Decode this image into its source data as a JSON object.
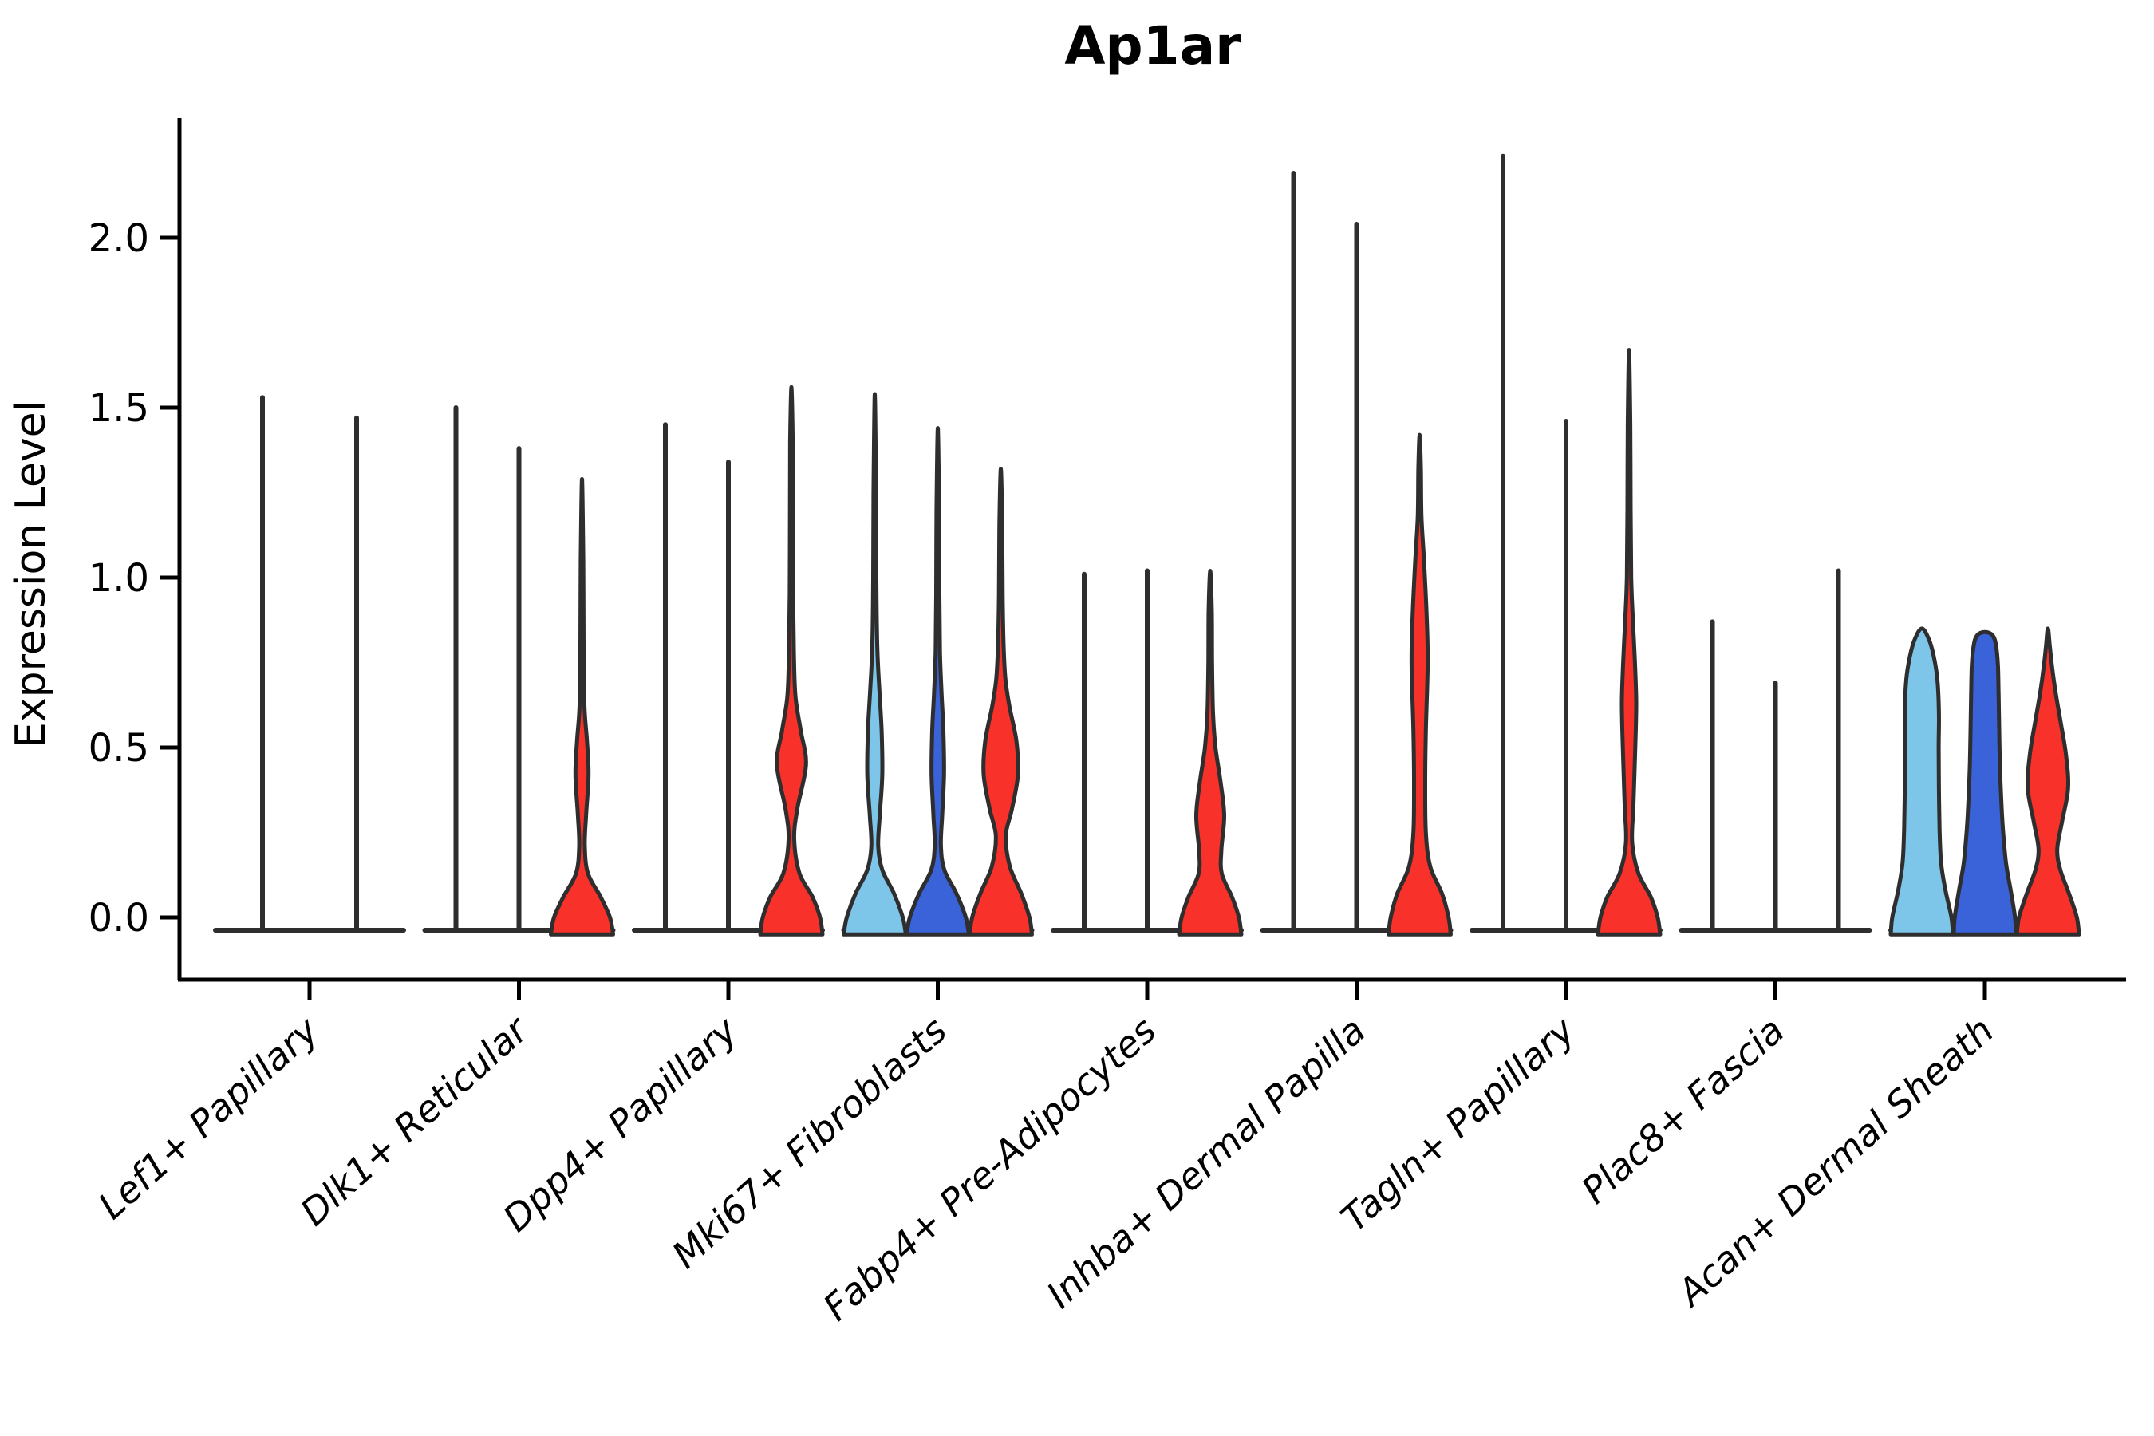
{
  "title": "Ap1ar",
  "y_axis": {
    "label": "Expression Level",
    "tick_labels": [
      "0.0",
      "0.5",
      "1.0",
      "1.5",
      "2.0"
    ],
    "tick_values": [
      0,
      0.5,
      1.0,
      1.5,
      2.0
    ]
  },
  "x_axis": {
    "categories": [
      "Lef1+ Papillary",
      "Dlk1+ Reticular",
      "Dpp4+ Papillary",
      "Mki67+ Fibroblasts",
      "Fabp4+ Pre-Adipocytes",
      "Inhba+ Dermal Papilla",
      "Tagln+ Papillary",
      "Plac8+ Fascia",
      "Acan+ Dermal Sheath"
    ]
  },
  "chart_data": {
    "type": "violin",
    "title": "Ap1ar",
    "xlabel": "",
    "ylabel": "Expression Level",
    "ylim": [
      -0.06,
      2.35
    ],
    "yticks": [
      0,
      0.5,
      1.0,
      1.5,
      2.0
    ],
    "ytick_labels": [
      "0.0",
      "0.5",
      "1.0",
      "1.5",
      "2.0"
    ],
    "grid": false,
    "legend_position": "none",
    "categories": [
      "Lef1+ Papillary",
      "Dlk1+ Reticular",
      "Dpp4+ Papillary",
      "Mki67+ Fibroblasts",
      "Fabp4+ Pre-Adipocytes",
      "Inhba+ Dermal Papilla",
      "Tagln+ Papillary",
      "Plac8+ Fascia",
      "Acan+ Dermal Sheath"
    ],
    "palette": {
      "lightblue": "#7EC6E9",
      "blue": "#3A62D9",
      "red": "#F8322B",
      "outline": "#2E2E2E",
      "axis": "#000000"
    },
    "groups": [
      {
        "category": "Lef1+ Papillary",
        "violins": [
          {
            "kind": "spike",
            "max": 1.53
          },
          {
            "kind": "spike",
            "max": 1.47
          }
        ]
      },
      {
        "category": "Dlk1+ Reticular",
        "violins": [
          {
            "kind": "spike",
            "max": 1.5
          },
          {
            "kind": "spike",
            "max": 1.38
          },
          {
            "kind": "violin",
            "color": "red",
            "max": 1.29,
            "profile": [
              [
                -0.05,
                1.0
              ],
              [
                0,
                0.9
              ],
              [
                0.06,
                0.6
              ],
              [
                0.13,
                0.19
              ],
              [
                0.21,
                0.09
              ],
              [
                0.3,
                0.13
              ],
              [
                0.42,
                0.21
              ],
              [
                0.52,
                0.16
              ],
              [
                0.62,
                0.08
              ],
              [
                0.8,
                0.05
              ],
              [
                1.05,
                0.04
              ],
              [
                1.29,
                0.0
              ]
            ]
          }
        ]
      },
      {
        "category": "Dpp4+ Papillary",
        "violins": [
          {
            "kind": "spike",
            "max": 1.45
          },
          {
            "kind": "spike",
            "max": 1.34
          },
          {
            "kind": "violin",
            "color": "red",
            "max": 1.56,
            "profile": [
              [
                -0.05,
                1.0
              ],
              [
                0,
                0.92
              ],
              [
                0.06,
                0.68
              ],
              [
                0.13,
                0.26
              ],
              [
                0.23,
                0.09
              ],
              [
                0.32,
                0.19
              ],
              [
                0.45,
                0.47
              ],
              [
                0.55,
                0.3
              ],
              [
                0.65,
                0.13
              ],
              [
                0.78,
                0.08
              ],
              [
                0.95,
                0.055
              ],
              [
                1.2,
                0.045
              ],
              [
                1.4,
                0.04
              ],
              [
                1.56,
                0.0
              ]
            ]
          }
        ]
      },
      {
        "category": "Mki67+ Fibroblasts",
        "violins": [
          {
            "kind": "violin",
            "color": "lightblue",
            "max": 1.54,
            "profile": [
              [
                -0.05,
                1.0
              ],
              [
                0,
                0.9
              ],
              [
                0.07,
                0.62
              ],
              [
                0.14,
                0.24
              ],
              [
                0.21,
                0.11
              ],
              [
                0.3,
                0.16
              ],
              [
                0.42,
                0.24
              ],
              [
                0.55,
                0.22
              ],
              [
                0.68,
                0.14
              ],
              [
                0.8,
                0.08
              ],
              [
                1.0,
                0.05
              ],
              [
                1.25,
                0.04
              ],
              [
                1.54,
                0.0
              ]
            ]
          },
          {
            "kind": "violin",
            "color": "blue",
            "max": 1.44,
            "profile": [
              [
                -0.05,
                1.0
              ],
              [
                0,
                0.9
              ],
              [
                0.07,
                0.6
              ],
              [
                0.14,
                0.21
              ],
              [
                0.21,
                0.1
              ],
              [
                0.3,
                0.14
              ],
              [
                0.42,
                0.2
              ],
              [
                0.55,
                0.18
              ],
              [
                0.66,
                0.12
              ],
              [
                0.78,
                0.07
              ],
              [
                0.95,
                0.05
              ],
              [
                1.2,
                0.04
              ],
              [
                1.44,
                0.0
              ]
            ]
          },
          {
            "kind": "violin",
            "color": "red",
            "max": 1.32,
            "profile": [
              [
                -0.05,
                1.0
              ],
              [
                0,
                0.92
              ],
              [
                0.07,
                0.66
              ],
              [
                0.15,
                0.29
              ],
              [
                0.24,
                0.16
              ],
              [
                0.32,
                0.36
              ],
              [
                0.42,
                0.55
              ],
              [
                0.52,
                0.5
              ],
              [
                0.62,
                0.28
              ],
              [
                0.7,
                0.15
              ],
              [
                0.8,
                0.09
              ],
              [
                0.95,
                0.06
              ],
              [
                1.15,
                0.045
              ],
              [
                1.32,
                0.0
              ]
            ]
          }
        ]
      },
      {
        "category": "Fabp4+ Pre-Adipocytes",
        "violins": [
          {
            "kind": "spike",
            "max": 1.01
          },
          {
            "kind": "spike",
            "max": 1.02
          },
          {
            "kind": "violin",
            "color": "red",
            "max": 1.02,
            "profile": [
              [
                -0.05,
                1.0
              ],
              [
                0,
                0.92
              ],
              [
                0.06,
                0.7
              ],
              [
                0.13,
                0.37
              ],
              [
                0.2,
                0.36
              ],
              [
                0.3,
                0.45
              ],
              [
                0.4,
                0.33
              ],
              [
                0.5,
                0.17
              ],
              [
                0.6,
                0.09
              ],
              [
                0.75,
                0.06
              ],
              [
                0.9,
                0.05
              ],
              [
                1.02,
                0.0
              ]
            ]
          }
        ]
      },
      {
        "category": "Inhba+ Dermal Papilla",
        "violins": [
          {
            "kind": "spike",
            "max": 2.19
          },
          {
            "kind": "spike",
            "max": 2.04
          },
          {
            "kind": "violin",
            "color": "red",
            "max": 1.42,
            "profile": [
              [
                -0.05,
                1.0
              ],
              [
                0,
                0.93
              ],
              [
                0.07,
                0.72
              ],
              [
                0.15,
                0.34
              ],
              [
                0.25,
                0.2
              ],
              [
                0.4,
                0.18
              ],
              [
                0.55,
                0.2
              ],
              [
                0.75,
                0.26
              ],
              [
                0.9,
                0.22
              ],
              [
                1.05,
                0.14
              ],
              [
                1.18,
                0.06
              ],
              [
                1.32,
                0.04
              ],
              [
                1.42,
                0.0
              ]
            ]
          }
        ]
      },
      {
        "category": "Tagln+ Papillary",
        "violins": [
          {
            "kind": "spike",
            "max": 2.24
          },
          {
            "kind": "spike",
            "max": 1.46
          },
          {
            "kind": "violin",
            "color": "red",
            "max": 1.67,
            "profile": [
              [
                -0.05,
                1.0
              ],
              [
                0,
                0.92
              ],
              [
                0.06,
                0.7
              ],
              [
                0.13,
                0.3
              ],
              [
                0.22,
                0.1
              ],
              [
                0.33,
                0.14
              ],
              [
                0.5,
                0.2
              ],
              [
                0.63,
                0.23
              ],
              [
                0.75,
                0.19
              ],
              [
                0.88,
                0.12
              ],
              [
                1.0,
                0.07
              ],
              [
                1.2,
                0.05
              ],
              [
                1.45,
                0.04
              ],
              [
                1.67,
                0.0
              ]
            ]
          }
        ]
      },
      {
        "category": "Plac8+ Fascia",
        "violins": [
          {
            "kind": "spike",
            "max": 0.87
          },
          {
            "kind": "spike",
            "max": 0.69
          },
          {
            "kind": "spike",
            "max": 1.02
          }
        ]
      },
      {
        "category": "Acan+ Dermal Sheath",
        "violins": [
          {
            "kind": "violin",
            "color": "lightblue",
            "max": 0.85,
            "profile": [
              [
                -0.05,
                1.0
              ],
              [
                0,
                0.95
              ],
              [
                0.08,
                0.76
              ],
              [
                0.16,
                0.62
              ],
              [
                0.26,
                0.57
              ],
              [
                0.38,
                0.55
              ],
              [
                0.5,
                0.54
              ],
              [
                0.6,
                0.55
              ],
              [
                0.7,
                0.5
              ],
              [
                0.77,
                0.38
              ],
              [
                0.82,
                0.22
              ],
              [
                0.85,
                0.0
              ]
            ]
          },
          {
            "kind": "violin",
            "color": "blue",
            "max": 0.84,
            "profile": [
              [
                -0.05,
                1.0
              ],
              [
                0,
                0.97
              ],
              [
                0.08,
                0.83
              ],
              [
                0.16,
                0.68
              ],
              [
                0.26,
                0.58
              ],
              [
                0.36,
                0.52
              ],
              [
                0.46,
                0.48
              ],
              [
                0.56,
                0.46
              ],
              [
                0.66,
                0.44
              ],
              [
                0.74,
                0.42
              ],
              [
                0.8,
                0.36
              ],
              [
                0.83,
                0.25
              ],
              [
                0.84,
                0.0
              ]
            ]
          },
          {
            "kind": "violin",
            "color": "red",
            "max": 0.85,
            "profile": [
              [
                -0.05,
                1.0
              ],
              [
                0,
                0.93
              ],
              [
                0.07,
                0.68
              ],
              [
                0.14,
                0.4
              ],
              [
                0.2,
                0.3
              ],
              [
                0.28,
                0.45
              ],
              [
                0.38,
                0.65
              ],
              [
                0.48,
                0.58
              ],
              [
                0.58,
                0.4
              ],
              [
                0.66,
                0.25
              ],
              [
                0.74,
                0.13
              ],
              [
                0.8,
                0.06
              ],
              [
                0.85,
                0.0
              ]
            ]
          }
        ]
      }
    ]
  }
}
